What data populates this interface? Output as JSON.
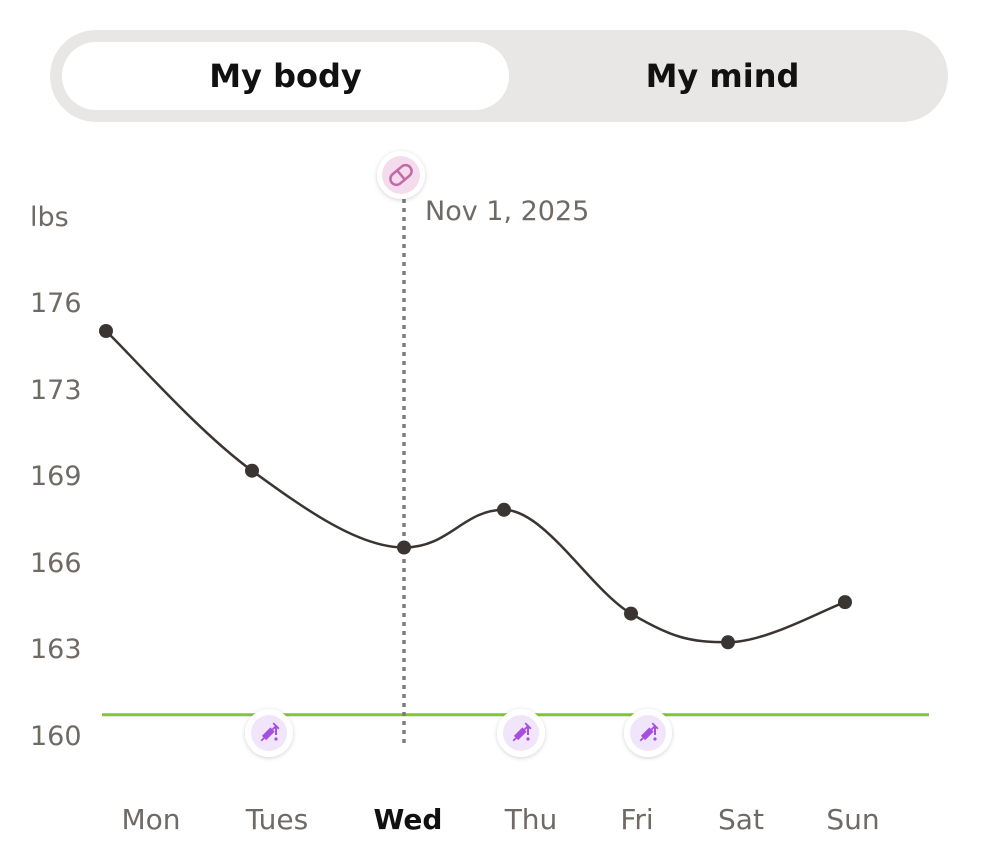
{
  "toggle": {
    "options": [
      "My body",
      "My mind"
    ],
    "selected": "My body"
  },
  "colors": {
    "line": "#3a3532",
    "goal": "#84c33a",
    "marker_line": "#7d7d7d",
    "pill_bg": "#f4dcee",
    "pill_icon": "#c26aa8",
    "event_bg": "#f1e5fb",
    "event_icon": "#a64ee0",
    "text": "#6f6a66"
  },
  "chart_data": {
    "type": "line",
    "ylabel": "lbs",
    "categories": [
      "Mon",
      "Tues",
      "Wed",
      "Thu",
      "Fri",
      "Sat",
      "Sun"
    ],
    "selected_category": "Wed",
    "series": [
      {
        "values": [
          175.0,
          169.2,
          166.5,
          167.8,
          164.2,
          163.2,
          164.6
        ]
      }
    ],
    "y_ticks": [
      160,
      163,
      166,
      169,
      173,
      176
    ],
    "goal_value": 160.7,
    "marker": {
      "category": "Wed",
      "date_label": "Nov 1, 2025",
      "icon": "pill-icon"
    },
    "event_icons": [
      {
        "category": "Tues",
        "icon": "syringe-icon"
      },
      {
        "category": "Thu",
        "icon": "syringe-icon"
      },
      {
        "category": "Fri",
        "icon": "syringe-icon"
      }
    ]
  }
}
